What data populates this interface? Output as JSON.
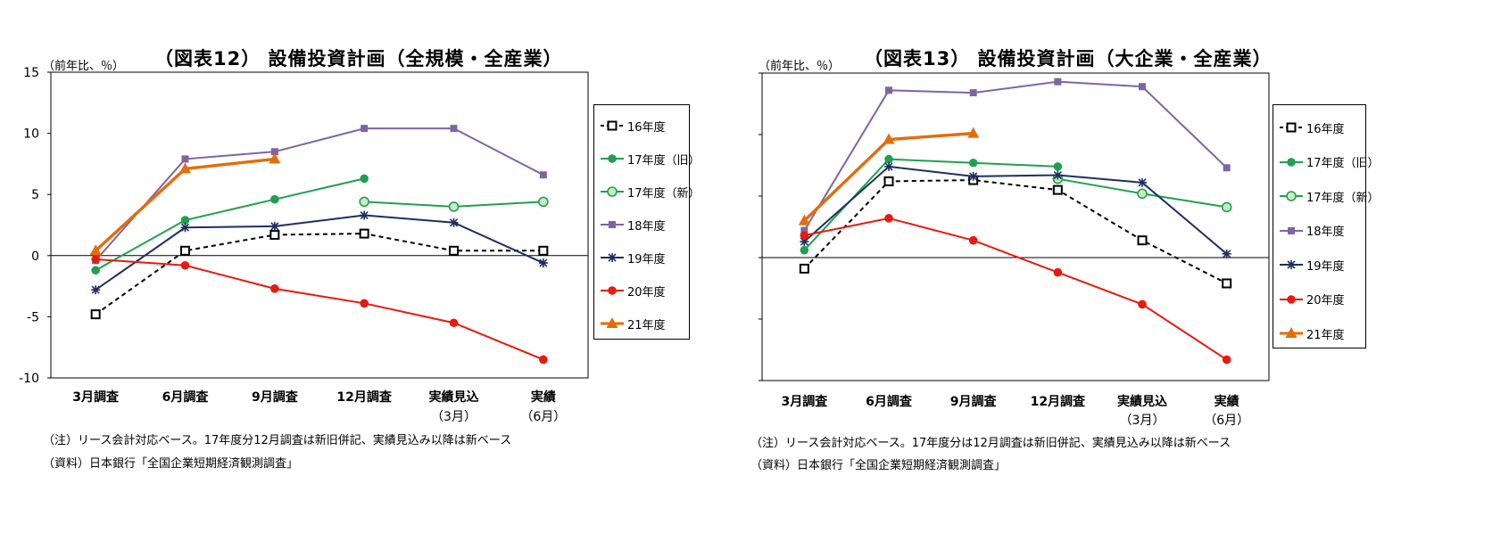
{
  "chart_data": [
    {
      "type": "line",
      "title": "（図表12） 設備投資計画（全規模・全産業）",
      "unit_label": "（前年比、％）",
      "categories": [
        "3月調査",
        "6月調査",
        "9月調査",
        "12月調査",
        "実績見込",
        "実績"
      ],
      "category_sublabels": [
        "",
        "",
        "",
        "",
        "（3月）",
        "（6月）"
      ],
      "yticks": [
        "15",
        "10",
        "5",
        "0",
        "-5",
        "-10"
      ],
      "ylim": [
        -10,
        15
      ],
      "legend_placement": "right",
      "series": [
        {
          "name": "16年度",
          "color": "#000000",
          "dash": true,
          "marker": "square-open",
          "values": [
            -4.8,
            0.4,
            1.7,
            1.8,
            0.4,
            0.4
          ]
        },
        {
          "name": "17年度（旧）",
          "color": "#1fa050",
          "marker": "circle",
          "values": [
            -1.2,
            2.9,
            4.6,
            6.3,
            null,
            null
          ]
        },
        {
          "name": "17年度（新）",
          "color": "#1fa050",
          "marker": "circle-light",
          "values": [
            null,
            null,
            null,
            4.4,
            4.0,
            4.4
          ]
        },
        {
          "name": "18年度",
          "color": "#8064a2",
          "marker": "square",
          "values": [
            -0.4,
            7.9,
            8.5,
            10.4,
            10.4,
            6.6
          ]
        },
        {
          "name": "19年度",
          "color": "#1f2f5f",
          "marker": "star",
          "values": [
            -2.8,
            2.3,
            2.4,
            3.3,
            2.7,
            -0.6
          ]
        },
        {
          "name": "20年度",
          "color": "#e8190f",
          "marker": "circle",
          "values": [
            -0.3,
            -0.8,
            -2.7,
            -3.9,
            -5.5,
            -8.5
          ]
        },
        {
          "name": "21年度",
          "color": "#e46c0a",
          "marker": "triangle",
          "thick": true,
          "values": [
            0.4,
            7.1,
            7.9,
            null,
            null,
            null
          ]
        }
      ],
      "notes": [
        "（注）リース会計対応ベース。17年度分12月調査は新旧併記、実績見込み以降は新ベース",
        "（資料）日本銀行「全国企業短期経済観測調査」"
      ]
    },
    {
      "type": "line",
      "title": "（図表13） 設備投資計画（大企業・全産業）",
      "unit_label": "（前年比、％）",
      "categories": [
        "3月調査",
        "6月調査",
        "9月調査",
        "12月調査",
        "実績見込",
        "実績"
      ],
      "category_sublabels": [
        "",
        "",
        "",
        "",
        "（3月）",
        "（6月）"
      ],
      "yticks": [
        "15",
        "10",
        "5",
        "0",
        "-5",
        "-10"
      ],
      "ylim": [
        -10,
        15
      ],
      "legend_placement": "right",
      "series": [
        {
          "name": "16年度",
          "color": "#000000",
          "dash": true,
          "marker": "square-open",
          "values": [
            -0.9,
            6.2,
            6.3,
            5.5,
            1.4,
            -2.1
          ]
        },
        {
          "name": "17年度（旧）",
          "color": "#1fa050",
          "marker": "circle",
          "values": [
            0.6,
            8.0,
            7.7,
            7.4,
            null,
            null
          ]
        },
        {
          "name": "17年度（新）",
          "color": "#1fa050",
          "marker": "circle-light",
          "values": [
            null,
            null,
            null,
            6.4,
            5.2,
            4.1
          ]
        },
        {
          "name": "18年度",
          "color": "#8064a2",
          "marker": "square",
          "values": [
            2.2,
            13.6,
            13.4,
            14.3,
            13.9,
            7.3
          ]
        },
        {
          "name": "19年度",
          "color": "#1f2f5f",
          "marker": "star",
          "values": [
            1.3,
            7.4,
            6.6,
            6.7,
            6.1,
            0.3
          ]
        },
        {
          "name": "20年度",
          "color": "#e8190f",
          "marker": "circle",
          "values": [
            1.8,
            3.2,
            1.4,
            -1.2,
            -3.8,
            -8.3
          ]
        },
        {
          "name": "21年度",
          "color": "#e46c0a",
          "marker": "triangle",
          "thick": true,
          "values": [
            3.0,
            9.6,
            10.1,
            null,
            null,
            null
          ]
        }
      ],
      "notes": [
        "（注）リース会計対応ベース。17年度分は12月調査は新旧併記、実績見込み以降は新ベース",
        "（資料）日本銀行「全国企業短期経済観測調査」"
      ]
    }
  ]
}
